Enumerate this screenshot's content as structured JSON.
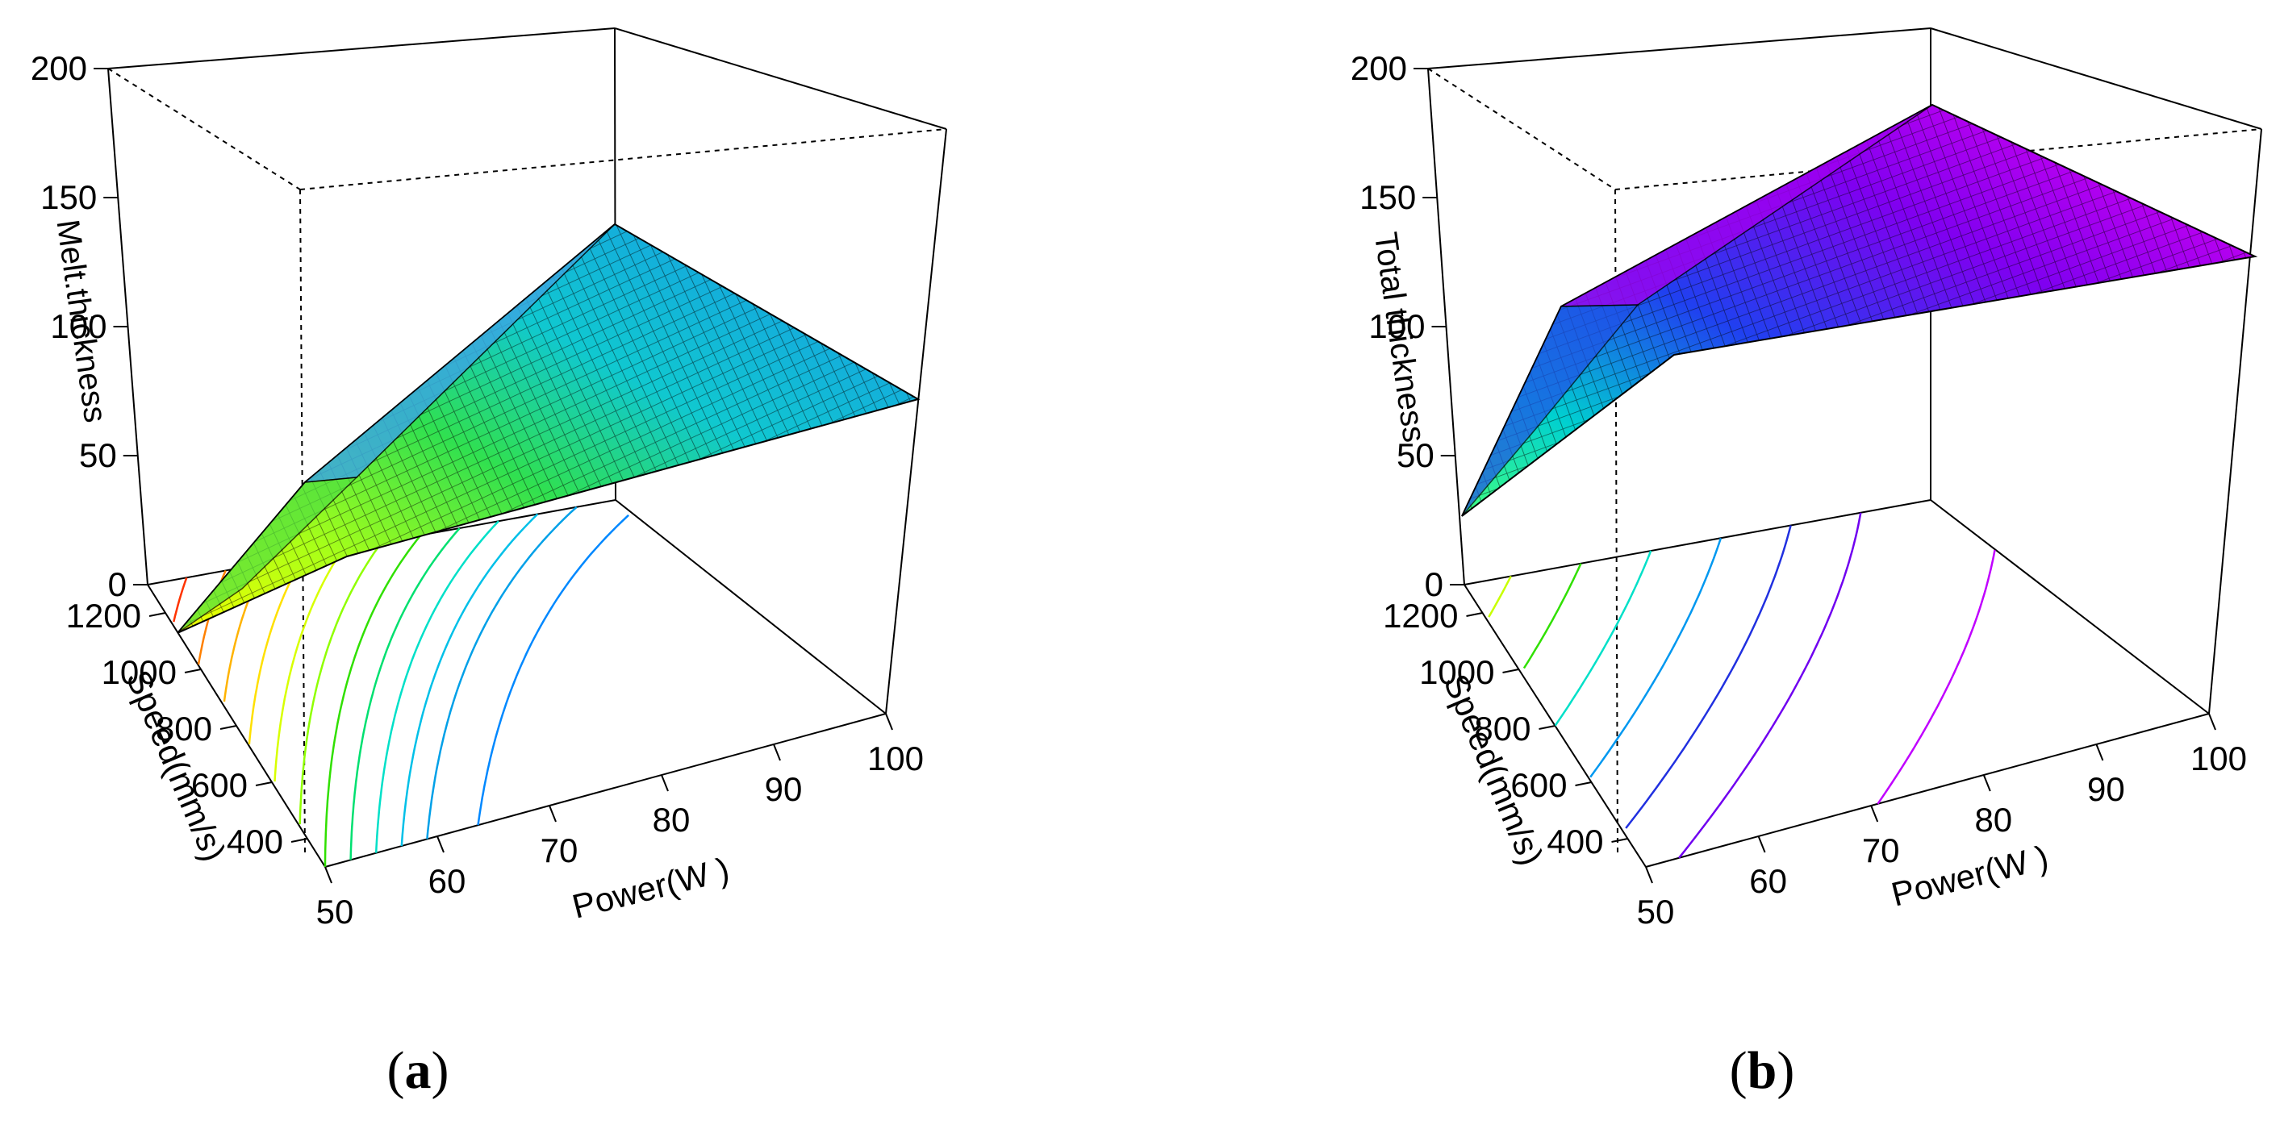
{
  "chart_data": [
    {
      "type": "surface3d",
      "panel": "a",
      "zlabel": "Melt.thickness",
      "xlabel": "Power(W )",
      "ylabel": "Speed(mm/s)",
      "x_ticks": [
        "50",
        "60",
        "70",
        "80",
        "90",
        "100"
      ],
      "y_ticks": [
        "400",
        "600",
        "800",
        "1000",
        "1200"
      ],
      "z_ticks": [
        "0",
        "50",
        "100",
        "150",
        "200"
      ],
      "xlim": [
        50,
        100
      ],
      "ylim": [
        300,
        1300
      ],
      "zlim": [
        0,
        200
      ],
      "colormap": "rainbow (red–yellow–green–cyan–blue)",
      "surface_corners": [
        {
          "power": 50,
          "speed": 300,
          "value": 40
        },
        {
          "power": 50,
          "speed": 1300,
          "value": 5
        },
        {
          "power": 100,
          "speed": 300,
          "value": 150
        },
        {
          "power": 100,
          "speed": 1300,
          "value": 65
        }
      ],
      "contour_levels": [
        10,
        15,
        20,
        25,
        30,
        35,
        40,
        45,
        50,
        55,
        60,
        70
      ],
      "contour_colors": [
        "#ff3300",
        "#ff8000",
        "#ffb300",
        "#ffe000",
        "#d8ff00",
        "#90ff00",
        "#30e000",
        "#00e070",
        "#00e0c8",
        "#00c0e8",
        "#00a0e8",
        "#0088ff"
      ]
    },
    {
      "type": "surface3d",
      "panel": "b",
      "zlabel": "Total  thickness",
      "xlabel": "Power(W )",
      "ylabel": "Speed(mm/s)",
      "x_ticks": [
        "50",
        "60",
        "70",
        "80",
        "90",
        "100"
      ],
      "y_ticks": [
        "400",
        "600",
        "800",
        "1000",
        "1200"
      ],
      "z_ticks": [
        "0",
        "50",
        "100",
        "150",
        "200"
      ],
      "xlim": [
        50,
        100
      ],
      "ylim": [
        300,
        1300
      ],
      "zlim": [
        0,
        200
      ],
      "colormap": "rainbow (green–cyan–blue–purple–magenta)",
      "surface_corners": [
        {
          "power": 50,
          "speed": 300,
          "value": 100
        },
        {
          "power": 50,
          "speed": 1300,
          "value": 20
        },
        {
          "power": 100,
          "speed": 300,
          "value": 185
        },
        {
          "power": 100,
          "speed": 1300,
          "value": 120
        }
      ],
      "contour_levels": [
        30,
        45,
        60,
        75,
        90,
        105,
        135
      ],
      "contour_colors": [
        "#c8ff00",
        "#30e000",
        "#00e0c8",
        "#0098f0",
        "#2030e0",
        "#7000f0",
        "#c000ff"
      ]
    }
  ],
  "captions": {
    "a": "a",
    "b": "b"
  }
}
